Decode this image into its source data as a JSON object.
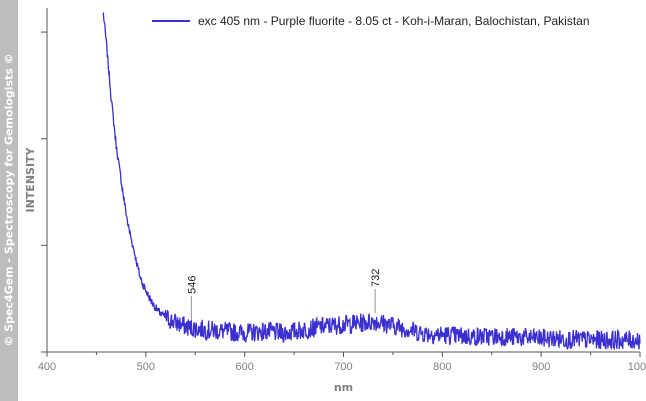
{
  "watermark": "© Spec4Gem - Spectroscopy for Gemologists ©",
  "colors": {
    "series": "#3b2fd0",
    "axis": "#555555",
    "sidebar": "#bdbdbd"
  },
  "chart_data": {
    "type": "line",
    "xlabel": "nm",
    "ylabel": "INTENSITY",
    "xlim": [
      400,
      1000
    ],
    "ylim": [
      0,
      1
    ],
    "x_ticks": [
      "400",
      "500",
      "600",
      "700",
      "800",
      "900",
      "1000"
    ],
    "y_ticks_labeled": false,
    "grid": false,
    "legend_position": "top-right",
    "series": [
      {
        "name": "exc 405 nm - Purple fluorite - 8.05 ct - Koh-i-Maran, Balochistan, Pakistan",
        "color": "#3b2fd0",
        "x_start": 457,
        "x_end": 1000,
        "points": [
          [
            457,
            0.985
          ],
          [
            460,
            0.9
          ],
          [
            463,
            0.8
          ],
          [
            466,
            0.71
          ],
          [
            470,
            0.6
          ],
          [
            474,
            0.52
          ],
          [
            478,
            0.44
          ],
          [
            482,
            0.37
          ],
          [
            486,
            0.32
          ],
          [
            490,
            0.27
          ],
          [
            494,
            0.22
          ],
          [
            498,
            0.19
          ],
          [
            505,
            0.15
          ],
          [
            512,
            0.12
          ],
          [
            520,
            0.1
          ],
          [
            530,
            0.085
          ],
          [
            540,
            0.075
          ],
          [
            546,
            0.07
          ],
          [
            560,
            0.065
          ],
          [
            580,
            0.06
          ],
          [
            600,
            0.055
          ],
          [
            620,
            0.06
          ],
          [
            640,
            0.055
          ],
          [
            660,
            0.065
          ],
          [
            680,
            0.075
          ],
          [
            700,
            0.08
          ],
          [
            720,
            0.085
          ],
          [
            732,
            0.09
          ],
          [
            745,
            0.08
          ],
          [
            760,
            0.07
          ],
          [
            780,
            0.055
          ],
          [
            800,
            0.05
          ],
          [
            830,
            0.045
          ],
          [
            860,
            0.045
          ],
          [
            900,
            0.04
          ],
          [
            950,
            0.035
          ],
          [
            1000,
            0.035
          ]
        ]
      }
    ],
    "annotations": [
      {
        "x": 546,
        "label": "546",
        "y": 0.07
      },
      {
        "x": 732,
        "label": "732",
        "y": 0.09
      }
    ]
  }
}
